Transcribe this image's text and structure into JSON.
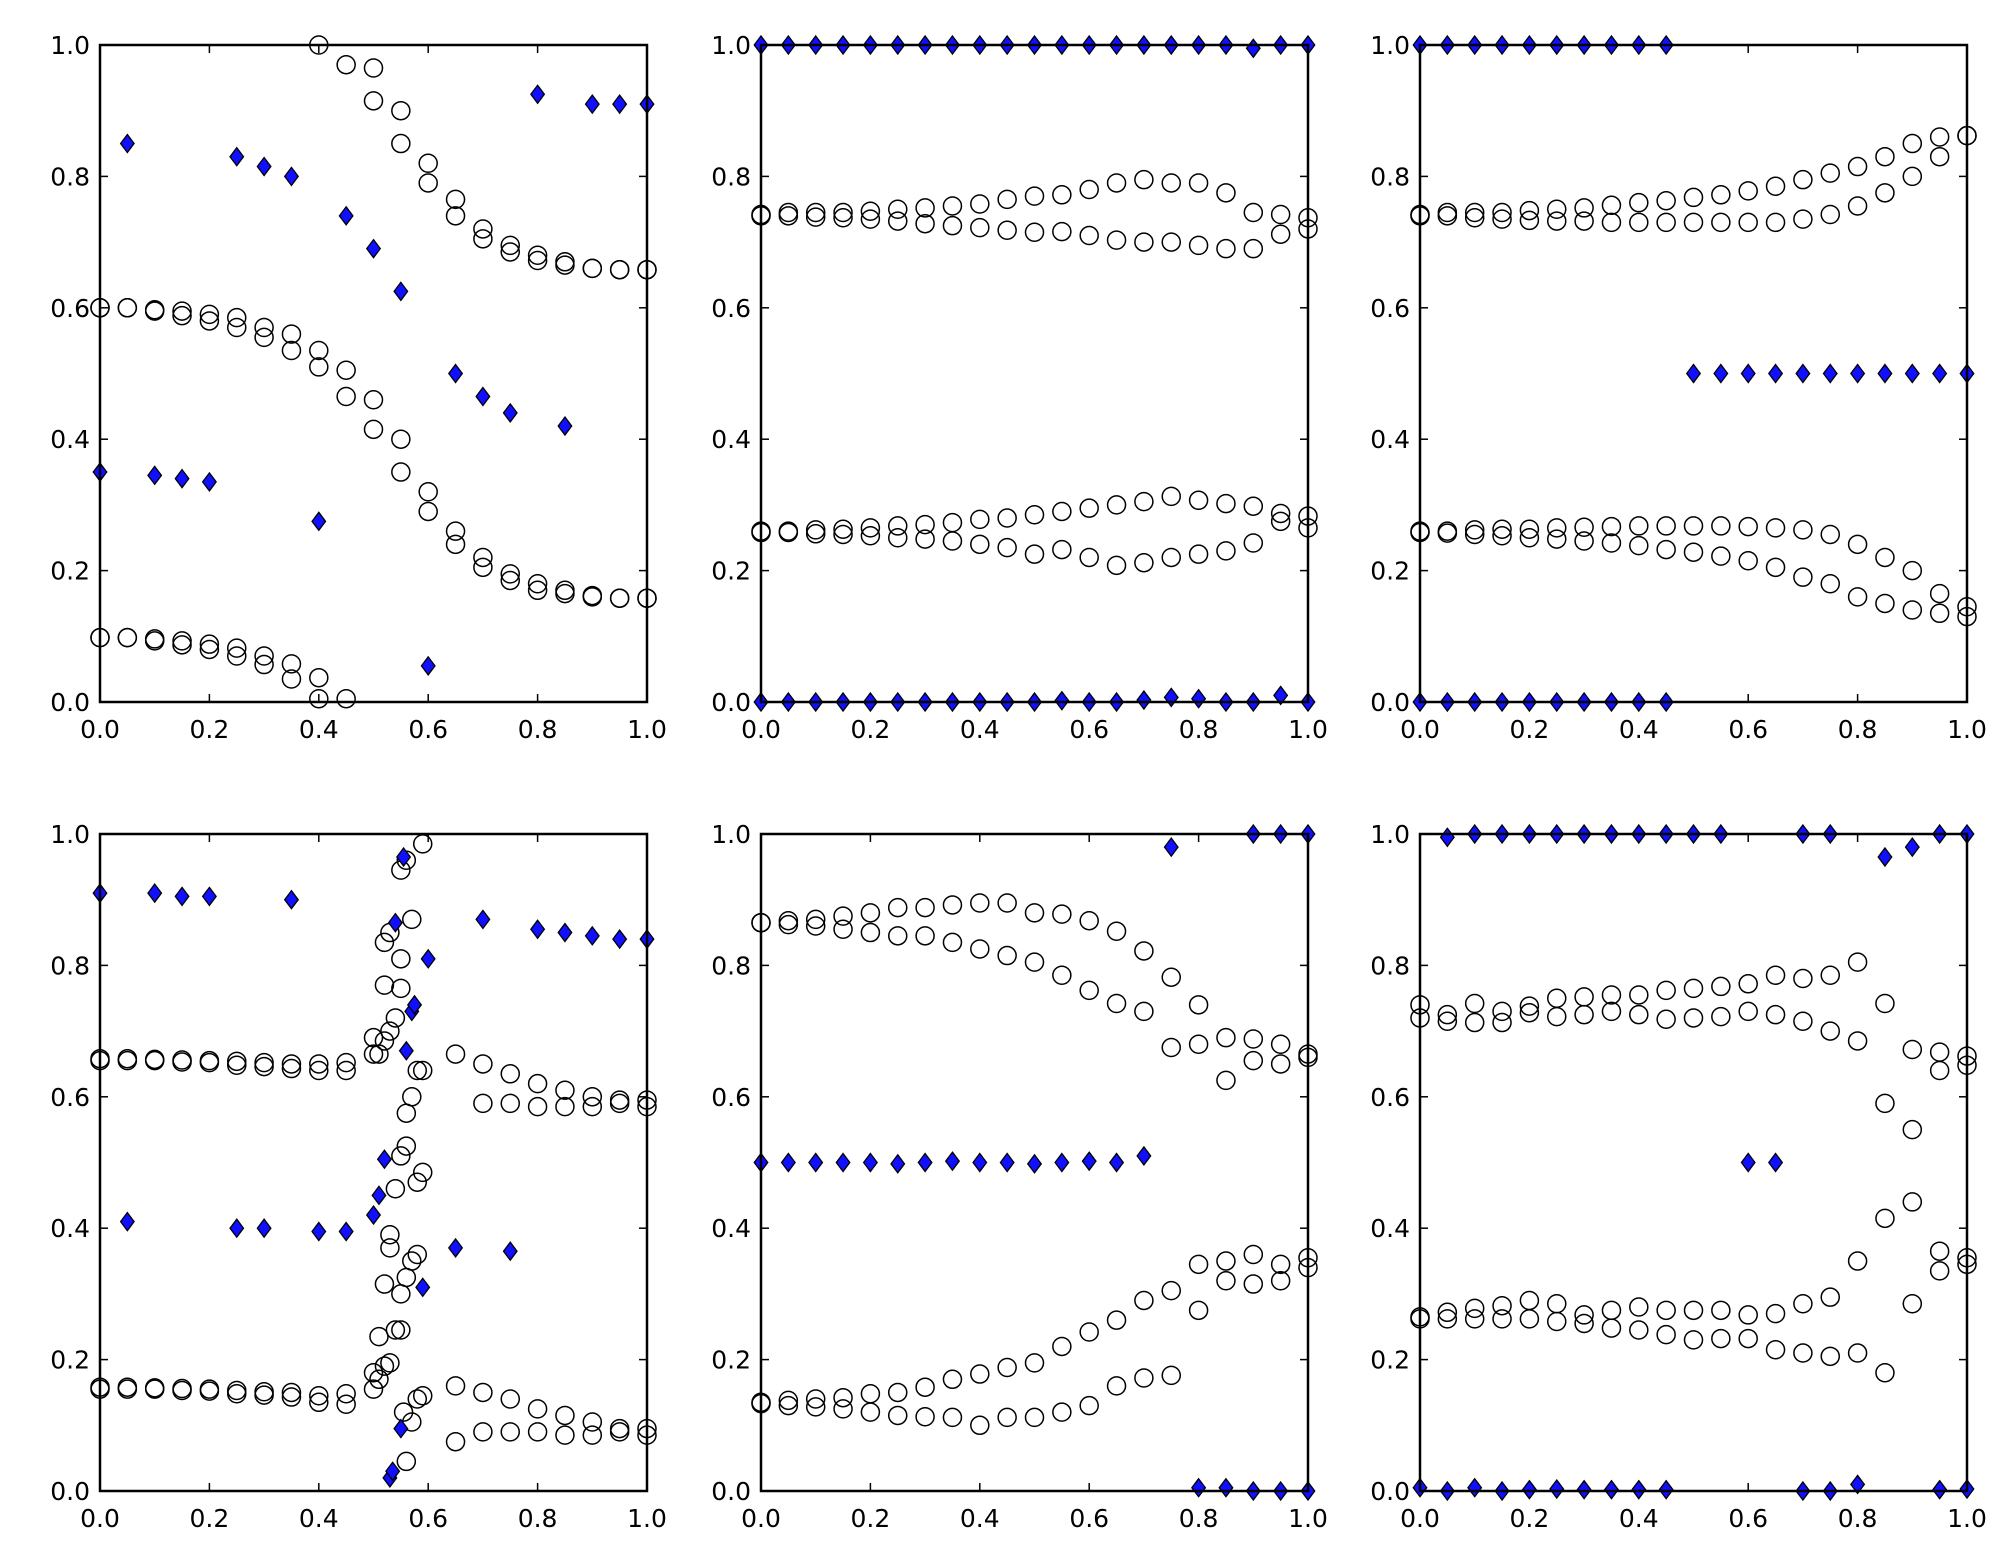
{
  "chart_data": [
    {
      "type": "scatter",
      "title": "",
      "xlim": [
        0,
        1
      ],
      "ylim": [
        0,
        1
      ],
      "xticks": [
        "0.0",
        "0.2",
        "0.4",
        "0.6",
        "0.8",
        "1.0"
      ],
      "yticks": [
        "0.0",
        "0.2",
        "0.4",
        "0.6",
        "0.8",
        "1.0"
      ],
      "circle_series": [
        [
          0.6,
          0.6,
          0.597,
          0.595,
          0.59,
          0.585,
          0.57,
          0.56,
          0.535,
          0.505,
          0.46,
          0.4,
          0.32,
          0.26,
          0.22,
          0.195,
          0.18,
          0.17,
          0.162,
          0.158,
          0.158
        ],
        [
          0.6,
          0.6,
          0.595,
          0.588,
          0.58,
          0.57,
          0.555,
          0.535,
          0.51,
          0.465,
          0.415,
          0.35,
          0.29,
          0.24,
          0.205,
          0.185,
          0.17,
          0.165,
          0.16,
          0.158,
          0.158
        ],
        [
          0.098,
          0.098,
          0.096,
          0.093,
          0.088,
          0.082,
          0.07,
          0.058,
          0.037,
          0.005,
          null,
          null,
          null,
          null,
          null,
          null,
          null,
          null,
          null,
          null,
          null
        ],
        [
          0.098,
          0.098,
          0.093,
          0.087,
          0.08,
          0.07,
          0.057,
          0.035,
          0.005,
          null,
          null,
          null,
          null,
          null,
          null,
          null,
          null,
          null,
          null,
          null,
          null
        ],
        [
          null,
          null,
          null,
          null,
          null,
          null,
          null,
          null,
          1.0,
          0.97,
          0.965,
          0.9,
          0.82,
          0.765,
          0.72,
          0.695,
          0.68,
          0.67,
          0.66,
          0.658,
          0.658
        ],
        [
          null,
          null,
          null,
          null,
          null,
          null,
          null,
          null,
          null,
          null,
          0.915,
          0.85,
          0.79,
          0.74,
          0.705,
          0.685,
          0.672,
          0.665,
          0.66,
          0.658,
          0.658
        ]
      ],
      "diamond_series": [
        [
          0.35,
          0.85,
          0.345,
          0.34,
          0.335,
          0.83,
          0.815,
          0.8,
          0.275,
          0.74,
          0.69,
          0.625,
          0.055,
          0.5,
          0.465,
          0.44,
          0.925,
          0.42,
          0.91,
          0.91,
          0.91
        ]
      ]
    },
    {
      "type": "scatter",
      "title": "",
      "xlim": [
        0,
        1
      ],
      "ylim": [
        0,
        1
      ],
      "xticks": [
        "0.0",
        "0.2",
        "0.4",
        "0.6",
        "0.8",
        "1.0"
      ],
      "yticks": [
        "0.0",
        "0.2",
        "0.4",
        "0.6",
        "0.8",
        "1.0"
      ],
      "circle_series": [
        [
          0.742,
          0.745,
          0.745,
          0.745,
          0.747,
          0.75,
          0.752,
          0.755,
          0.758,
          0.765,
          0.77,
          0.772,
          0.78,
          0.79,
          0.795,
          0.79,
          0.79,
          0.775,
          0.745,
          0.742,
          0.737
        ],
        [
          0.74,
          0.74,
          0.738,
          0.737,
          0.735,
          0.732,
          0.728,
          0.725,
          0.722,
          0.718,
          0.715,
          0.716,
          0.71,
          0.703,
          0.7,
          0.7,
          0.695,
          0.69,
          0.69,
          0.712,
          0.72
        ],
        [
          0.26,
          0.26,
          0.262,
          0.263,
          0.265,
          0.268,
          0.27,
          0.273,
          0.278,
          0.28,
          0.285,
          0.29,
          0.295,
          0.3,
          0.305,
          0.313,
          0.307,
          0.302,
          0.298,
          0.287,
          0.283
        ],
        [
          0.258,
          0.258,
          0.256,
          0.255,
          0.253,
          0.25,
          0.248,
          0.245,
          0.24,
          0.235,
          0.225,
          0.232,
          0.22,
          0.208,
          0.212,
          0.22,
          0.225,
          0.23,
          0.242,
          0.275,
          0.265
        ]
      ],
      "diamond_series": [
        [
          1,
          1,
          1,
          1,
          1,
          1,
          1,
          1,
          1,
          1,
          1,
          1,
          1,
          1,
          1,
          1,
          1,
          1,
          0.995,
          1,
          1
        ],
        [
          0,
          0,
          0,
          0,
          0,
          0,
          0,
          0,
          0,
          0,
          0,
          0.002,
          0,
          0,
          0.003,
          0.007,
          0.005,
          0,
          0,
          0.01,
          0
        ]
      ]
    },
    {
      "type": "scatter",
      "title": "",
      "xlim": [
        0,
        1
      ],
      "ylim": [
        0,
        1
      ],
      "xticks": [
        "0.0",
        "0.2",
        "0.4",
        "0.6",
        "0.8",
        "1.0"
      ],
      "yticks": [
        "0.0",
        "0.2",
        "0.4",
        "0.6",
        "0.8",
        "1.0"
      ],
      "circle_series": [
        [
          0.742,
          0.745,
          0.745,
          0.745,
          0.748,
          0.75,
          0.752,
          0.756,
          0.76,
          0.763,
          0.768,
          0.772,
          0.778,
          0.785,
          0.795,
          0.805,
          0.815,
          0.83,
          0.85,
          0.86,
          0.862
        ],
        [
          0.74,
          0.74,
          0.737,
          0.735,
          0.733,
          0.732,
          0.732,
          0.73,
          0.73,
          0.73,
          0.73,
          0.73,
          0.73,
          0.73,
          0.735,
          0.742,
          0.755,
          0.775,
          0.8,
          0.83,
          0.862
        ],
        [
          0.26,
          0.26,
          0.262,
          0.263,
          0.263,
          0.265,
          0.266,
          0.267,
          0.268,
          0.268,
          0.268,
          0.268,
          0.267,
          0.265,
          0.262,
          0.255,
          0.24,
          0.22,
          0.2,
          0.165,
          0.145
        ],
        [
          0.258,
          0.257,
          0.255,
          0.253,
          0.25,
          0.248,
          0.245,
          0.242,
          0.238,
          0.232,
          0.228,
          0.222,
          0.215,
          0.205,
          0.19,
          0.18,
          0.16,
          0.15,
          0.14,
          0.135,
          0.13
        ]
      ],
      "diamond_series": [
        [
          1,
          1,
          1,
          1,
          1,
          1,
          1,
          1,
          1,
          1,
          0.5,
          0.5,
          0.5,
          0.5,
          0.5,
          0.5,
          0.5,
          0.5,
          0.5,
          0.5,
          0.5
        ],
        [
          0,
          0,
          0,
          0,
          0,
          0,
          0,
          0,
          0,
          0,
          null,
          null,
          null,
          null,
          null,
          null,
          null,
          null,
          null,
          null,
          null
        ]
      ]
    },
    {
      "type": "scatter",
      "title": "",
      "xlim": [
        0,
        1
      ],
      "ylim": [
        0,
        1
      ],
      "xticks": [
        "0.0",
        "0.2",
        "0.4",
        "0.6",
        "0.8",
        "1.0"
      ],
      "yticks": [
        "0.0",
        "0.2",
        "0.4",
        "0.6",
        "0.8",
        "1.0"
      ],
      "circle_series": [
        [
          0.658,
          0.658,
          0.657,
          0.656,
          0.655,
          0.654,
          0.652,
          0.65,
          0.65,
          0.652,
          null,
          null,
          null,
          null,
          0.65,
          0.635,
          0.62,
          0.61,
          0.6,
          0.595,
          0.595
        ],
        [
          0.655,
          0.655,
          0.655,
          0.653,
          0.652,
          0.648,
          0.646,
          0.643,
          0.64,
          0.64,
          null,
          null,
          null,
          0.665,
          0.59,
          0.59,
          0.585,
          0.585,
          0.585,
          0.59,
          0.585
        ],
        [
          0.158,
          0.158,
          0.157,
          0.156,
          0.155,
          0.153,
          0.151,
          0.15,
          0.145,
          0.148,
          null,
          null,
          null,
          0.16,
          0.15,
          0.14,
          0.125,
          0.115,
          0.105,
          0.095,
          0.095
        ],
        [
          0.155,
          0.155,
          0.155,
          0.153,
          0.152,
          0.148,
          0.146,
          0.143,
          0.135,
          0.132,
          null,
          null,
          null,
          0.075,
          0.09,
          0.09,
          0.09,
          0.085,
          0.085,
          0.09,
          0.085
        ]
      ],
      "circle_points": [
        [
          0.5,
          0.69
        ],
        [
          0.5,
          0.665
        ],
        [
          0.5,
          0.18
        ],
        [
          0.5,
          0.155
        ],
        [
          0.51,
          0.665
        ],
        [
          0.51,
          0.235
        ],
        [
          0.51,
          0.17
        ],
        [
          0.52,
          0.77
        ],
        [
          0.52,
          0.835
        ],
        [
          0.52,
          0.685
        ],
        [
          0.52,
          0.315
        ],
        [
          0.52,
          0.19
        ],
        [
          0.53,
          0.85
        ],
        [
          0.53,
          0.7
        ],
        [
          0.53,
          0.39
        ],
        [
          0.53,
          0.37
        ],
        [
          0.53,
          0.195
        ],
        [
          0.54,
          0.72
        ],
        [
          0.54,
          0.245
        ],
        [
          0.54,
          0.46
        ],
        [
          0.55,
          0.945
        ],
        [
          0.55,
          0.765
        ],
        [
          0.55,
          0.81
        ],
        [
          0.55,
          0.51
        ],
        [
          0.55,
          0.3
        ],
        [
          0.55,
          0.245
        ],
        [
          0.555,
          0.12
        ],
        [
          0.56,
          0.96
        ],
        [
          0.56,
          0.575
        ],
        [
          0.56,
          0.525
        ],
        [
          0.56,
          0.325
        ],
        [
          0.56,
          0.045
        ],
        [
          0.57,
          0.87
        ],
        [
          0.57,
          0.6
        ],
        [
          0.57,
          0.35
        ],
        [
          0.57,
          0.105
        ],
        [
          0.58,
          0.64
        ],
        [
          0.58,
          0.47
        ],
        [
          0.58,
          0.36
        ],
        [
          0.58,
          0.14
        ],
        [
          0.59,
          0.985
        ],
        [
          0.59,
          0.64
        ],
        [
          0.59,
          0.485
        ],
        [
          0.59,
          0.145
        ]
      ],
      "diamond_points": [
        [
          0,
          0.91
        ],
        [
          0.05,
          0.41
        ],
        [
          0.1,
          0.91
        ],
        [
          0.15,
          0.905
        ],
        [
          0.2,
          0.905
        ],
        [
          0.25,
          0.4
        ],
        [
          0.3,
          0.4
        ],
        [
          0.35,
          0.9
        ],
        [
          0.4,
          0.395
        ],
        [
          0.45,
          0.395
        ],
        [
          0.5,
          0.42
        ],
        [
          0.51,
          0.45
        ],
        [
          0.52,
          0.505
        ],
        [
          0.53,
          0.02
        ],
        [
          0.535,
          0.03
        ],
        [
          0.54,
          0.865
        ],
        [
          0.55,
          0.095
        ],
        [
          0.555,
          0.965
        ],
        [
          0.56,
          0.67
        ],
        [
          0.57,
          0.73
        ],
        [
          0.575,
          0.74
        ],
        [
          0.59,
          0.31
        ],
        [
          0.6,
          0.81
        ],
        [
          0.65,
          0.37
        ],
        [
          0.7,
          0.87
        ],
        [
          0.75,
          0.365
        ],
        [
          0.8,
          0.855
        ],
        [
          0.85,
          0.85
        ],
        [
          0.9,
          0.845
        ],
        [
          0.95,
          0.84
        ],
        [
          1.0,
          0.84
        ]
      ]
    },
    {
      "type": "scatter",
      "title": "",
      "xlim": [
        0,
        1
      ],
      "ylim": [
        0,
        1
      ],
      "xticks": [
        "0.0",
        "0.2",
        "0.4",
        "0.6",
        "0.8",
        "1.0"
      ],
      "yticks": [
        "0.0",
        "0.2",
        "0.4",
        "0.6",
        "0.8",
        "1.0"
      ],
      "circle_series": [
        [
          0.865,
          0.868,
          0.87,
          0.875,
          0.88,
          0.888,
          0.888,
          0.892,
          0.895,
          0.895,
          0.88,
          0.878,
          0.868,
          0.852,
          0.822,
          0.782,
          0.74,
          0.69,
          0.688,
          0.68,
          0.665
        ],
        [
          0.865,
          0.862,
          0.86,
          0.855,
          0.85,
          0.845,
          0.845,
          0.835,
          0.825,
          0.815,
          0.805,
          0.785,
          0.762,
          0.742,
          0.73,
          0.675,
          0.68,
          0.625,
          0.655,
          0.65,
          0.66
        ],
        [
          0.135,
          0.138,
          0.14,
          0.142,
          0.148,
          0.15,
          0.158,
          0.17,
          0.178,
          0.188,
          0.195,
          0.22,
          0.242,
          0.26,
          0.29,
          0.305,
          0.345,
          0.35,
          0.36,
          0.345,
          0.355
        ],
        [
          0.133,
          0.13,
          0.128,
          0.125,
          0.12,
          0.115,
          0.113,
          0.112,
          0.1,
          0.112,
          0.112,
          0.12,
          0.13,
          0.16,
          0.172,
          0.176,
          0.275,
          0.32,
          0.315,
          0.32,
          0.34
        ]
      ],
      "diamond_series": [
        [
          0.5,
          0.5,
          0.5,
          0.5,
          0.5,
          0.498,
          0.5,
          0.502,
          0.5,
          0.5,
          0.498,
          0.5,
          0.502,
          0.5,
          0.51,
          0.98,
          null,
          null,
          1,
          1,
          1
        ],
        [
          null,
          null,
          null,
          null,
          null,
          null,
          null,
          null,
          null,
          null,
          null,
          null,
          null,
          null,
          null,
          null,
          0.005,
          0.005,
          0,
          0,
          0
        ]
      ]
    },
    {
      "type": "scatter",
      "title": "",
      "xlim": [
        0,
        1
      ],
      "ylim": [
        0,
        1
      ],
      "xticks": [
        "0.0",
        "0.2",
        "0.4",
        "0.6",
        "0.8",
        "1.0"
      ],
      "yticks": [
        "0.0",
        "0.2",
        "0.4",
        "0.6",
        "0.8",
        "1.0"
      ],
      "circle_series": [
        [
          0.74,
          0.725,
          0.742,
          0.73,
          0.738,
          0.75,
          0.752,
          0.755,
          0.755,
          0.762,
          0.765,
          0.768,
          0.772,
          0.785,
          0.78,
          0.785,
          0.805,
          0.742,
          0.672,
          0.668,
          0.662
        ],
        [
          0.72,
          0.715,
          0.713,
          0.713,
          0.728,
          0.722,
          0.725,
          0.73,
          0.725,
          0.718,
          0.72,
          0.722,
          0.73,
          0.725,
          0.715,
          0.7,
          0.685,
          0.59,
          0.55,
          0.64,
          0.648
        ],
        [
          0.265,
          0.272,
          0.278,
          0.282,
          0.29,
          0.285,
          0.268,
          0.275,
          0.28,
          0.275,
          0.275,
          0.275,
          0.268,
          0.27,
          0.285,
          0.295,
          0.35,
          0.415,
          0.44,
          0.365,
          0.355
        ],
        [
          0.262,
          0.262,
          0.262,
          0.262,
          0.262,
          0.258,
          0.255,
          0.248,
          0.245,
          0.238,
          0.23,
          0.232,
          0.232,
          0.215,
          0.21,
          0.205,
          0.21,
          0.18,
          0.285,
          0.335,
          0.345
        ]
      ],
      "diamond_series": [
        [
          null,
          0.995,
          1,
          1,
          1,
          1,
          1,
          1,
          1,
          1,
          1,
          1,
          0.5,
          0.5,
          1,
          1,
          null,
          0.965,
          0.98,
          1,
          1
        ],
        [
          0.005,
          0,
          0.005,
          0,
          0.002,
          0.003,
          0.002,
          0.002,
          0.002,
          0.002,
          null,
          null,
          null,
          null,
          0,
          0,
          0.01,
          null,
          null,
          0.002,
          0.003
        ]
      ]
    }
  ],
  "colors": {
    "diamond_fill": "#1010ff",
    "marker_edge": "#000000",
    "axes": "#000000"
  }
}
